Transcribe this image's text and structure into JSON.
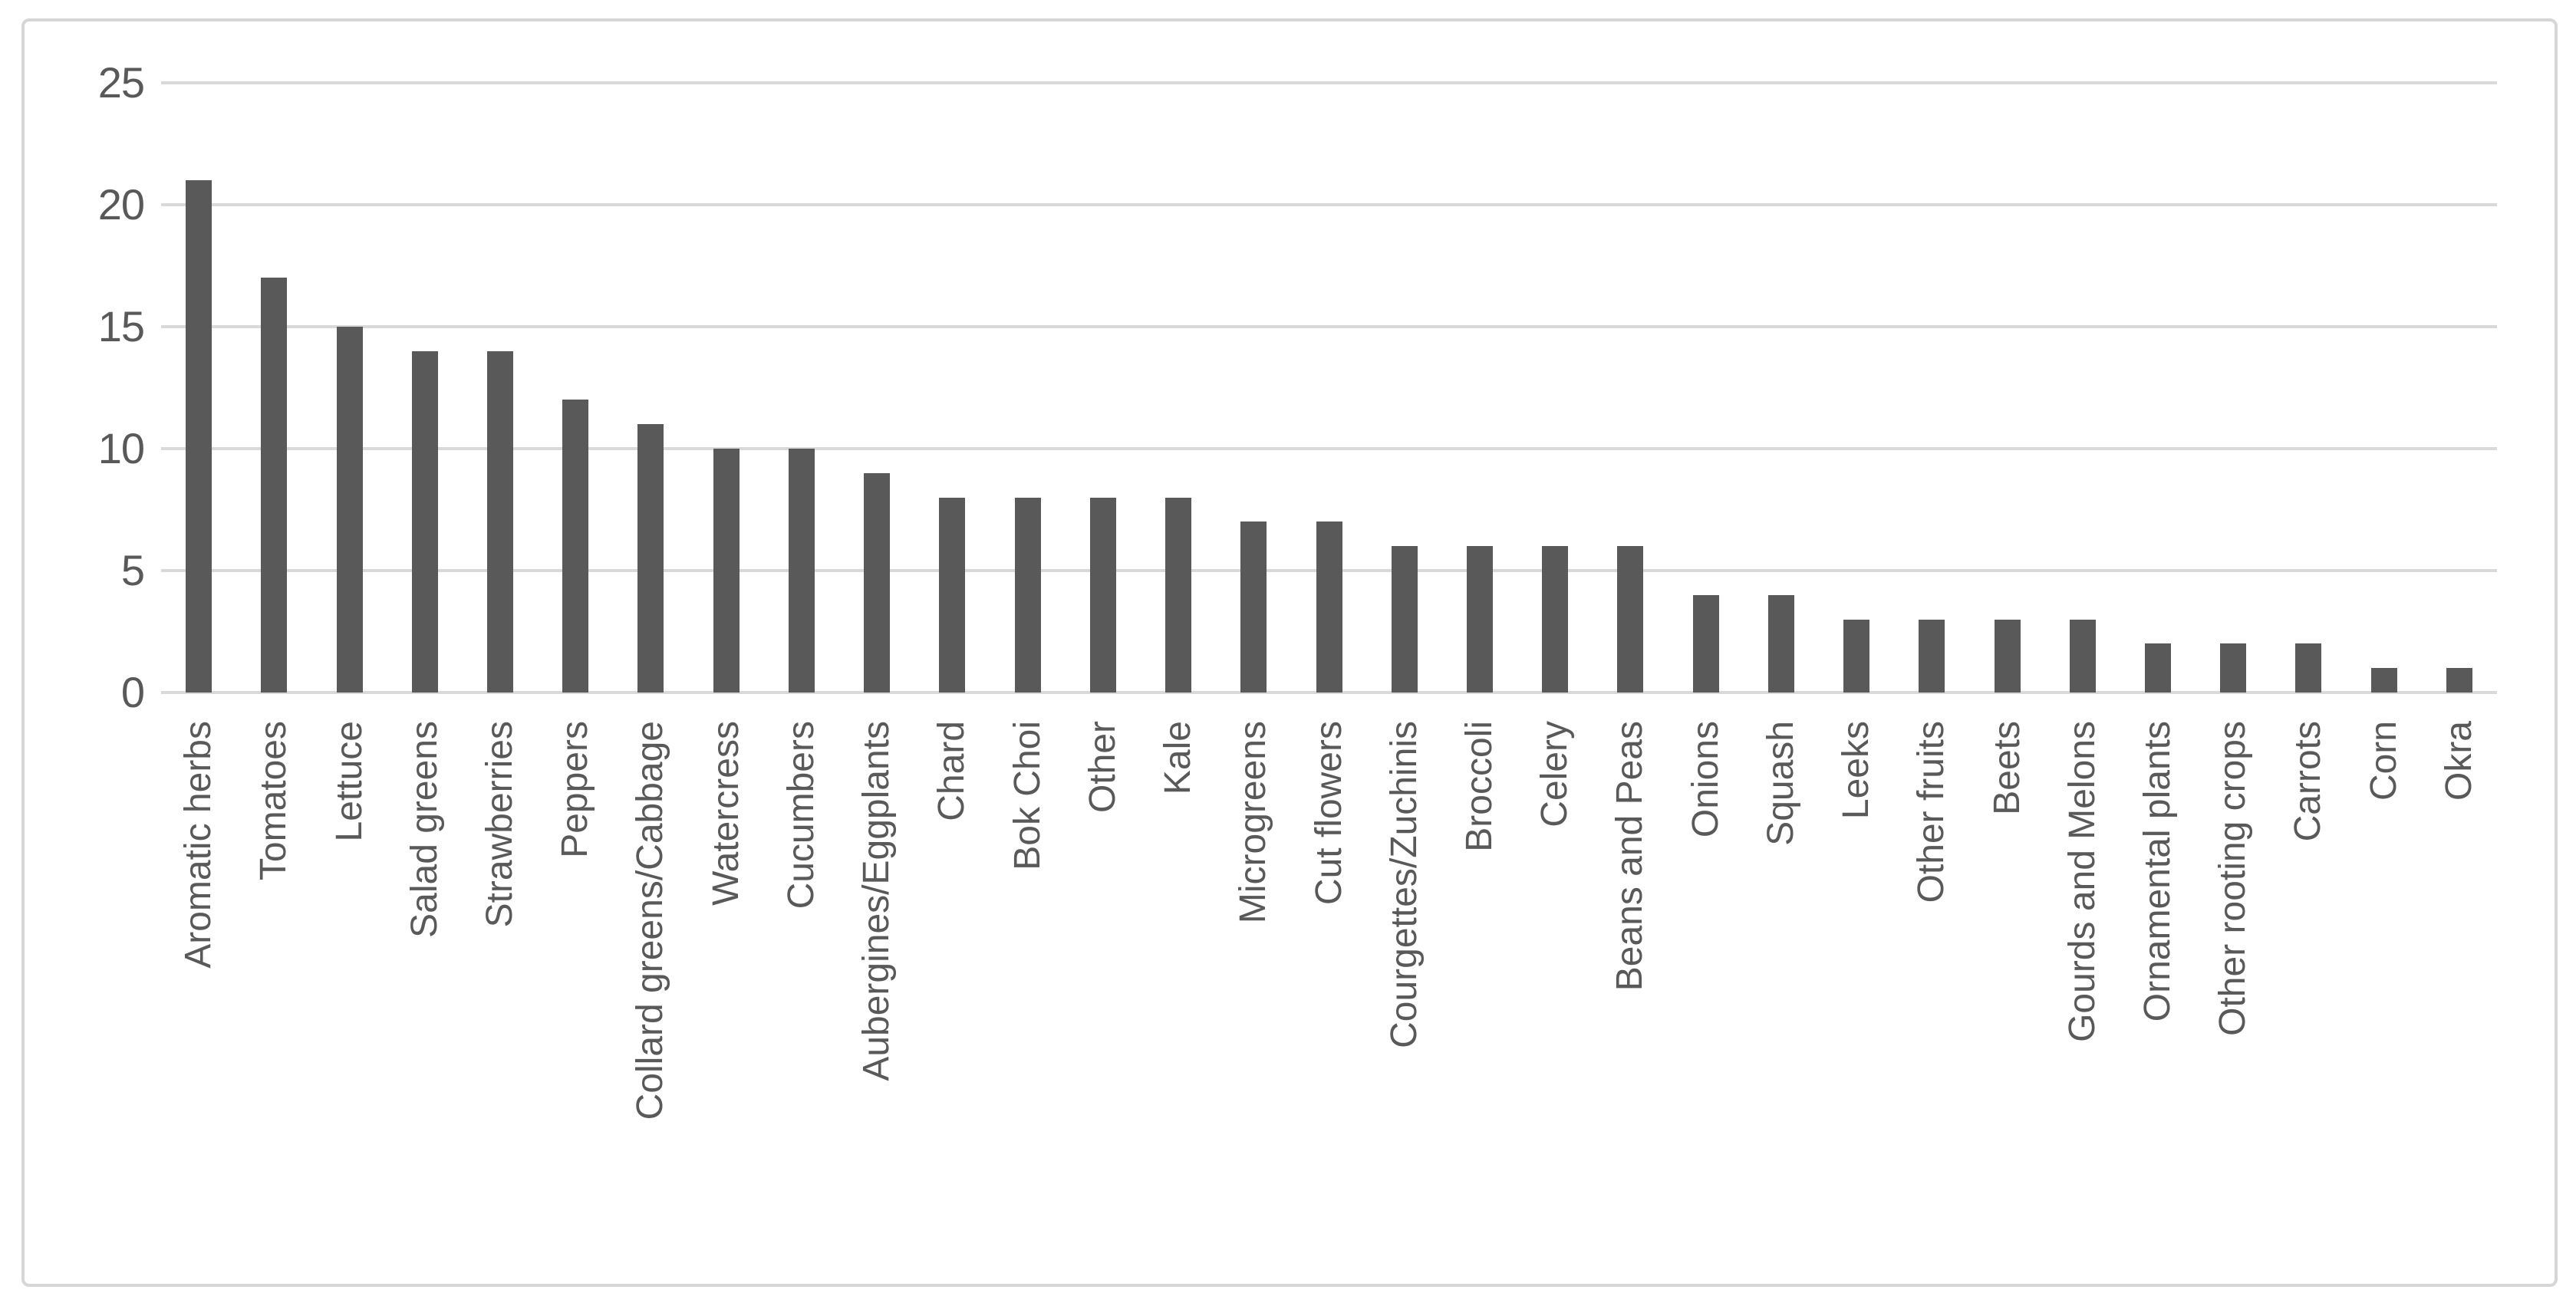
{
  "chart_data": {
    "type": "bar",
    "title": "",
    "xlabel": "",
    "ylabel": "",
    "categories": [
      "Aromatic herbs",
      "Tomatoes",
      "Lettuce",
      "Salad greens",
      "Strawberries",
      "Peppers",
      "Collard greens/Cabbage",
      "Watercress",
      "Cucumbers",
      "Aubergines/Eggplants",
      "Chard",
      "Bok Choi",
      "Other",
      "Kale",
      "Microgreens",
      "Cut flowers",
      "Courgettes/Zuchinis",
      "Broccoli",
      "Celery",
      "Beans and Peas",
      "Onions",
      "Squash",
      "Leeks",
      "Other fruits",
      "Beets",
      "Gourds and Melons",
      "Ornamental plants",
      "Other rooting crops",
      "Carrots",
      "Corn",
      "Okra"
    ],
    "values": [
      21,
      17,
      15,
      14,
      14,
      12,
      11,
      10,
      10,
      9,
      8,
      8,
      8,
      8,
      7,
      7,
      6,
      6,
      6,
      6,
      4,
      4,
      3,
      3,
      3,
      3,
      2,
      2,
      2,
      1,
      1
    ],
    "ylim": [
      0,
      25
    ],
    "yticks": [
      0,
      5,
      10,
      15,
      20,
      25
    ],
    "grid": "horizontal-only",
    "legend": "none",
    "bar_color": "#595959",
    "gridline_color": "#d9d9d9",
    "axis_text_color": "#595959",
    "frame_border_color": "#d6d6d6",
    "background_color": "#ffffff"
  }
}
